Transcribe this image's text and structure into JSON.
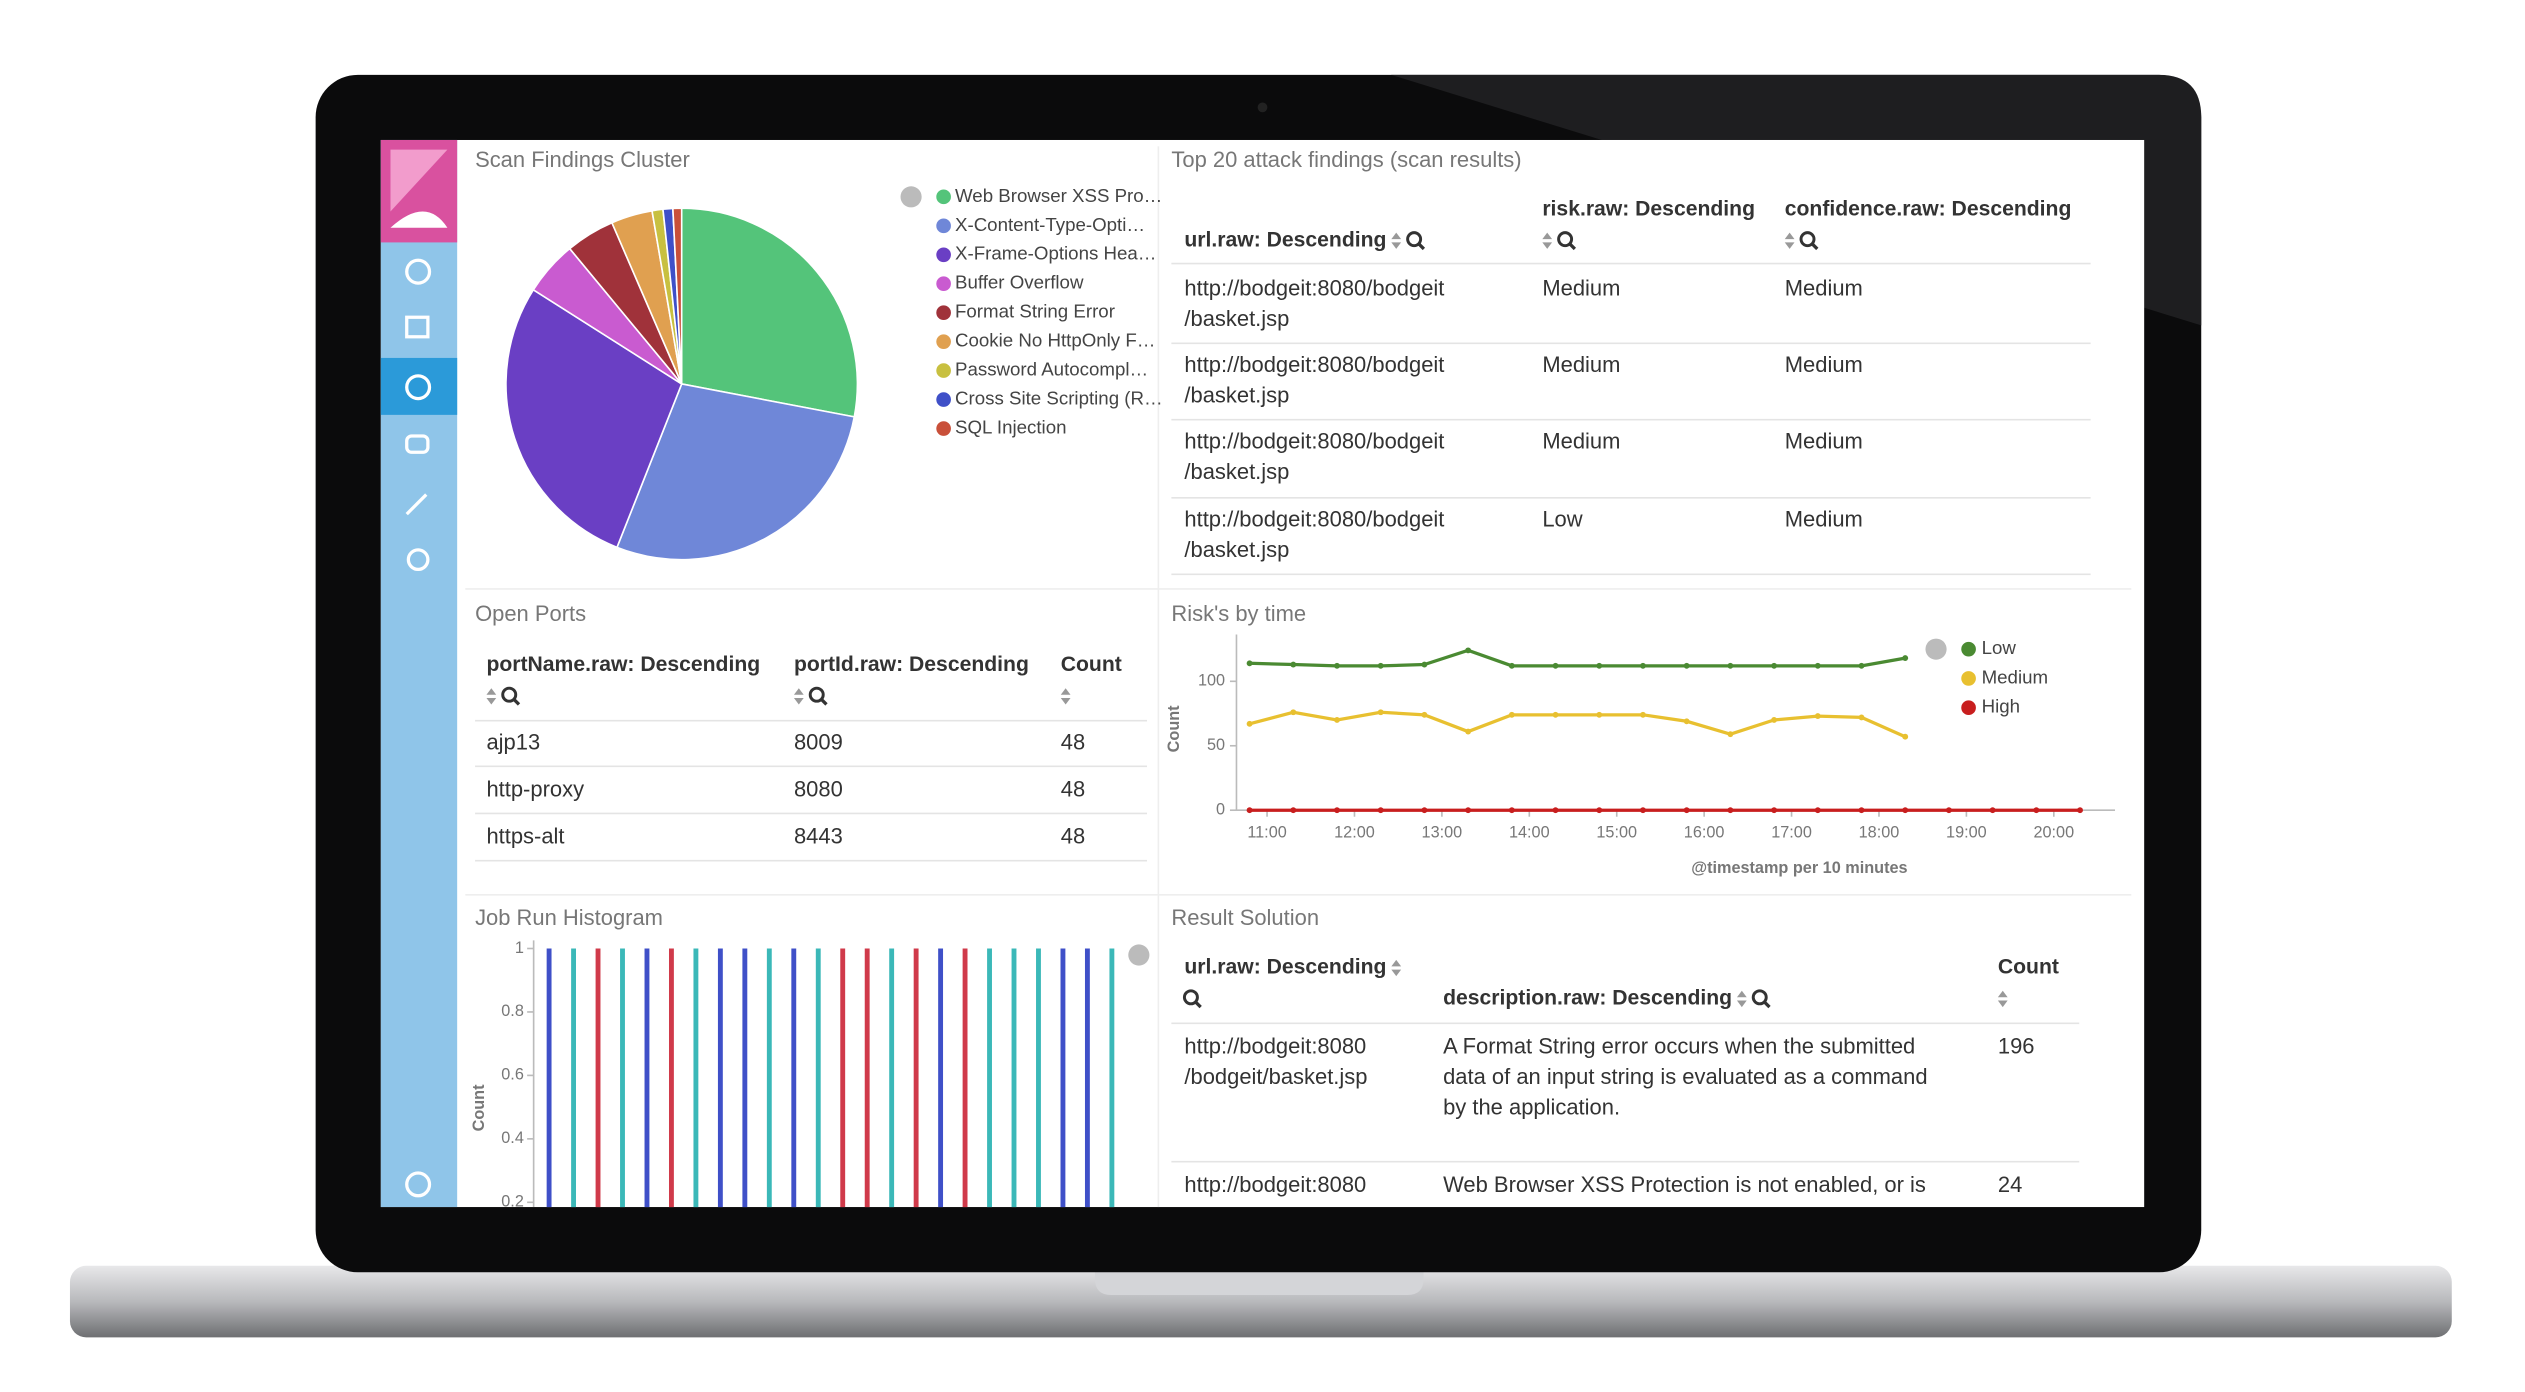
{
  "chart_data": [
    {
      "type": "pie",
      "title": "Scan Findings Cluster",
      "labels": [
        "Web Browser XSS Pro…",
        "X-Content-Type-Opti…",
        "X-Frame-Options Hea…",
        "Buffer Overflow",
        "Format String Error",
        "Cookie No HttpOnly F…",
        "Password Autocompl…",
        "Cross Site Scripting (R…",
        "SQL Injection"
      ],
      "values": [
        28,
        28,
        28,
        5,
        4.5,
        3.8,
        1,
        0.9,
        0.8
      ],
      "colors": [
        "#54c47a",
        "#6f87d8",
        "#6a3fc4",
        "#c95bd0",
        "#a0323a",
        "#e0a050",
        "#c8c040",
        "#3f50c8",
        "#c9503a"
      ]
    },
    {
      "type": "line",
      "title": "Risk's by time",
      "x_label": "@timestamp per 10 minutes",
      "y_label": "Count",
      "x": [
        10.8,
        11.3,
        11.8,
        12.3,
        12.8,
        13.3,
        13.8,
        14.3,
        14.8,
        15.3,
        15.8,
        16.3,
        16.8,
        17.3,
        17.8,
        18.3,
        18.8,
        19.3,
        19.8,
        20.3
      ],
      "xlim": [
        10.65,
        20.7
      ],
      "xticks": [
        {
          "value": 11,
          "label": "11:00"
        },
        {
          "value": 12,
          "label": "12:00"
        },
        {
          "value": 13,
          "label": "13:00"
        },
        {
          "value": 14,
          "label": "14:00"
        },
        {
          "value": 15,
          "label": "15:00"
        },
        {
          "value": 16,
          "label": "16:00"
        },
        {
          "value": 17,
          "label": "17:00"
        },
        {
          "value": 18,
          "label": "18:00"
        },
        {
          "value": 19,
          "label": "19:00"
        },
        {
          "value": 20,
          "label": "20:00"
        }
      ],
      "ylim": [
        0,
        130
      ],
      "yticks": [
        0,
        50,
        100
      ],
      "series": [
        {
          "name": "Low",
          "color": "#4a8a32",
          "values": [
            114,
            113,
            112,
            112,
            113,
            124,
            112,
            112,
            112,
            112,
            112,
            112,
            112,
            112,
            112,
            118,
            null,
            null,
            null,
            null
          ]
        },
        {
          "name": "Medium",
          "color": "#e8c030",
          "values": [
            67,
            76,
            70,
            76,
            74,
            61,
            74,
            74,
            74,
            74,
            69,
            59,
            70,
            73,
            72,
            57,
            null,
            null,
            null,
            null
          ]
        },
        {
          "name": "High",
          "color": "#c81e1e",
          "values": [
            0,
            0,
            0,
            0,
            0,
            0,
            0,
            0,
            0,
            0,
            0,
            0,
            0,
            0,
            0,
            0,
            0,
            0,
            0,
            0
          ]
        }
      ]
    },
    {
      "type": "bar",
      "title": "Job Run Histogram",
      "y_label": "Count",
      "values": [
        1,
        1,
        1,
        1,
        1,
        1,
        1,
        1,
        1,
        1,
        1,
        1,
        1,
        1,
        1,
        1,
        1,
        1,
        1,
        1,
        1,
        1,
        1,
        1
      ],
      "colors": [
        "#3f50c8",
        "#3bb8b8",
        "#d03a4a",
        "#3bb8b8",
        "#3f50c8",
        "#d03a4a",
        "#3bb8b8",
        "#3f50c8",
        "#3f50c8",
        "#3bb8b8",
        "#3f50c8",
        "#3bb8b8",
        "#d03a4a",
        "#d03a4a",
        "#3bb8b8",
        "#d03a4a",
        "#3f50c8",
        "#d03a4a",
        "#3bb8b8",
        "#3bb8b8",
        "#3bb8b8",
        "#3f50c8",
        "#3f50c8",
        "#3bb8b8"
      ],
      "ylim": [
        0,
        1
      ],
      "yticks": [
        0.2,
        0.4,
        0.6,
        0.8,
        1
      ]
    }
  ],
  "tables": [
    {
      "title": "Top 20 attack findings (scan results)",
      "columns": [
        "url.raw: Descending",
        "risk.raw: Descending",
        "confidence.raw: Descending"
      ],
      "rows": [
        [
          [
            "http://bodgeit:8080/bodgeit",
            "/basket.jsp"
          ],
          [
            "Medium"
          ],
          [
            "Medium"
          ]
        ],
        [
          [
            "http://bodgeit:8080/bodgeit",
            "/basket.jsp"
          ],
          [
            "Medium"
          ],
          [
            "Medium"
          ]
        ],
        [
          [
            "http://bodgeit:8080/bodgeit",
            "/basket.jsp"
          ],
          [
            "Medium"
          ],
          [
            "Medium"
          ]
        ],
        [
          [
            "http://bodgeit:8080/bodgeit",
            "/basket.jsp"
          ],
          [
            "Low"
          ],
          [
            "Medium"
          ]
        ]
      ]
    },
    {
      "title": "Open Ports",
      "columns": [
        "portName.raw: Descending",
        "portId.raw: Descending",
        "Count"
      ],
      "rows": [
        [
          [
            "ajp13"
          ],
          [
            8009
          ],
          [
            48
          ]
        ],
        [
          [
            "http-proxy"
          ],
          [
            8080
          ],
          [
            48
          ]
        ],
        [
          [
            "https-alt"
          ],
          [
            8443
          ],
          [
            48
          ]
        ]
      ]
    },
    {
      "title": "Result Solution",
      "columns": [
        "url.raw: Descending",
        "description.raw: Descending",
        "Count"
      ],
      "rows": [
        [
          [
            "http://bodgeit:8080",
            "/bodgeit/basket.jsp"
          ],
          [
            "A Format String error occurs when the submitted",
            "data of an input string is evaluated as a command",
            "by the application."
          ],
          [
            196
          ]
        ],
        [
          [
            "http://bodgeit:8080"
          ],
          [
            "Web Browser XSS Protection is not enabled, or is"
          ],
          [
            24
          ]
        ]
      ]
    }
  ]
}
